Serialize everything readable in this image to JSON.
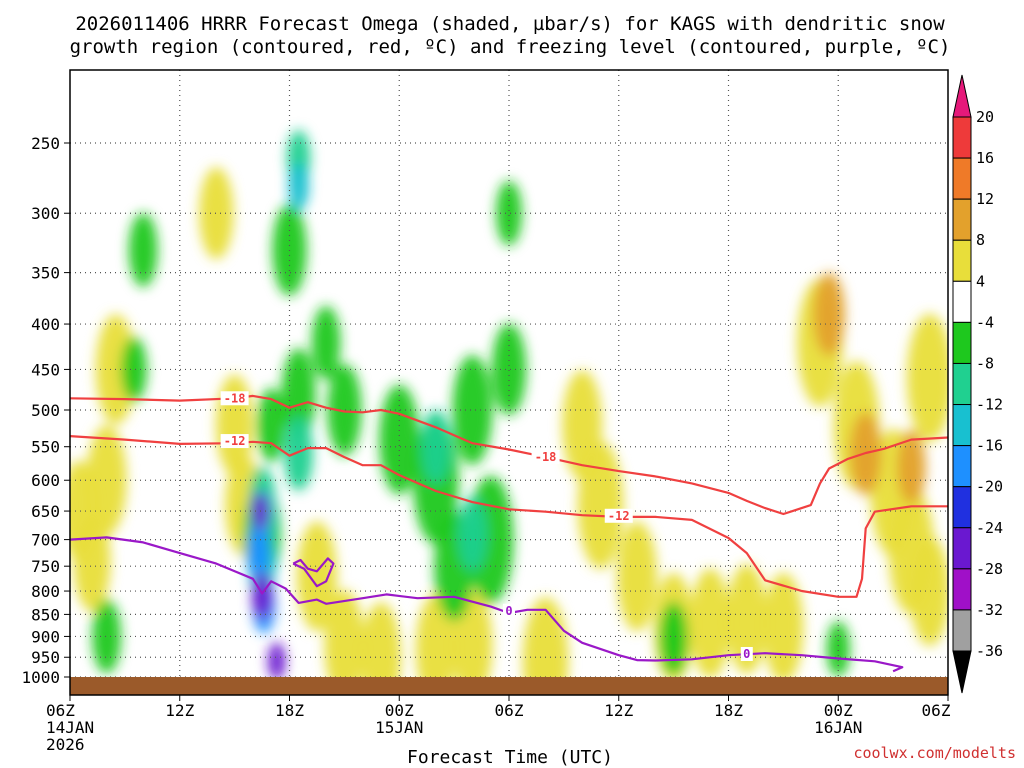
{
  "chart_data": {
    "type": "heatmap",
    "title_line1": "2026011406 HRRR Forecast Omega (shaded, µbar/s) for KAGS with dendritic snow",
    "title_line2": "growth region (contoured, red, ºC) and freezing level (contoured, purple, ºC)",
    "xlabel": "Forecast Time (UTC)",
    "credit": "coolwx.com/modelts",
    "x_hours": [
      0,
      6,
      12,
      18,
      24,
      30,
      36,
      42,
      48
    ],
    "x_ticks": [
      {
        "h": 0,
        "l1": "06Z",
        "l2": "14JAN",
        "l3": "2026"
      },
      {
        "h": 6,
        "l1": "12Z",
        "l2": "",
        "l3": ""
      },
      {
        "h": 12,
        "l1": "18Z",
        "l2": "",
        "l3": ""
      },
      {
        "h": 18,
        "l1": "00Z",
        "l2": "15JAN",
        "l3": ""
      },
      {
        "h": 24,
        "l1": "06Z",
        "l2": "",
        "l3": ""
      },
      {
        "h": 30,
        "l1": "12Z",
        "l2": "",
        "l3": ""
      },
      {
        "h": 36,
        "l1": "18Z",
        "l2": "",
        "l3": ""
      },
      {
        "h": 42,
        "l1": "00Z",
        "l2": "16JAN",
        "l3": ""
      },
      {
        "h": 48,
        "l1": "06Z",
        "l2": "",
        "l3": ""
      }
    ],
    "y_ticks": [
      "250",
      "300",
      "350",
      "400",
      "450",
      "500",
      "550",
      "600",
      "650",
      "700",
      "750",
      "800",
      "850",
      "900",
      "950",
      "1000"
    ],
    "y_levels": [
      250,
      300,
      350,
      400,
      450,
      500,
      550,
      600,
      650,
      700,
      750,
      800,
      850,
      900,
      950,
      1000
    ],
    "colorbar": {
      "ticks": [
        "20",
        "16",
        "12",
        "8",
        "4",
        "-4",
        "-8",
        "-12",
        "-16",
        "-20",
        "-24",
        "-28",
        "-32",
        "-36"
      ],
      "bins": [
        {
          "from": 16,
          "to": 20,
          "color": "#ee3a3a"
        },
        {
          "from": 12,
          "to": 16,
          "color": "#ef7a28"
        },
        {
          "from": 8,
          "to": 12,
          "color": "#e3a12c"
        },
        {
          "from": 4,
          "to": 8,
          "color": "#e8de3a"
        },
        {
          "from": -4,
          "to": 4,
          "color": "#ffffff"
        },
        {
          "from": -8,
          "to": -4,
          "color": "#1ec81e"
        },
        {
          "from": -12,
          "to": -8,
          "color": "#20d090"
        },
        {
          "from": -16,
          "to": -12,
          "color": "#18c0d0"
        },
        {
          "from": -20,
          "to": -16,
          "color": "#1e90ff"
        },
        {
          "from": -24,
          "to": -20,
          "color": "#2030e0"
        },
        {
          "from": -28,
          "to": -24,
          "color": "#6a18d0"
        },
        {
          "from": -32,
          "to": -28,
          "color": "#a010c8"
        },
        {
          "from": -36,
          "to": -32,
          "color": "#a0a0a0"
        }
      ],
      "top_arrow_color": "#e6197a",
      "bottom_arrow_color": "#000000"
    },
    "terrain_color": "#9b5a2a",
    "contours": [
      {
        "name": "-18",
        "label": "-18",
        "color": "#f04040",
        "points": [
          [
            0,
            485
          ],
          [
            3,
            486
          ],
          [
            6,
            488
          ],
          [
            9,
            485
          ],
          [
            10,
            482
          ],
          [
            11,
            486
          ],
          [
            12,
            497
          ],
          [
            13,
            490
          ],
          [
            14,
            497
          ],
          [
            15,
            502
          ],
          [
            16,
            503
          ],
          [
            17,
            500
          ],
          [
            18,
            505
          ],
          [
            20,
            523
          ],
          [
            22,
            545
          ],
          [
            24,
            554
          ],
          [
            26,
            565
          ],
          [
            28,
            577
          ],
          [
            30,
            586
          ],
          [
            32,
            594
          ],
          [
            34,
            605
          ],
          [
            36,
            620
          ],
          [
            37,
            633
          ],
          [
            38,
            645
          ],
          [
            39,
            655
          ],
          [
            39.5,
            650
          ],
          [
            40.5,
            640
          ],
          [
            41,
            605
          ],
          [
            41.5,
            582
          ],
          [
            42.5,
            568
          ],
          [
            43.5,
            559
          ],
          [
            44.5,
            553
          ],
          [
            46,
            540
          ],
          [
            48,
            537
          ]
        ],
        "label_at": [
          [
            9,
            485
          ],
          [
            26,
            565
          ]
        ]
      },
      {
        "name": "-12",
        "label": "-12",
        "color": "#f04040",
        "points": [
          [
            0,
            535
          ],
          [
            3,
            540
          ],
          [
            6,
            546
          ],
          [
            9,
            545
          ],
          [
            10,
            543
          ],
          [
            11,
            545
          ],
          [
            12,
            563
          ],
          [
            13,
            552
          ],
          [
            14,
            552
          ],
          [
            15,
            565
          ],
          [
            16,
            577
          ],
          [
            17,
            577
          ],
          [
            18,
            592
          ],
          [
            20,
            617
          ],
          [
            22,
            635
          ],
          [
            24,
            647
          ],
          [
            26,
            651
          ],
          [
            28,
            657
          ],
          [
            30,
            660
          ],
          [
            32,
            660
          ],
          [
            34,
            665
          ],
          [
            36,
            697
          ],
          [
            37,
            725
          ],
          [
            38,
            778
          ],
          [
            40,
            800
          ],
          [
            42,
            812
          ],
          [
            43,
            812
          ],
          [
            43.3,
            775
          ],
          [
            43.5,
            680
          ],
          [
            44,
            651
          ],
          [
            46,
            642
          ],
          [
            48,
            642
          ]
        ],
        "label_at": [
          [
            9,
            542
          ],
          [
            30,
            658
          ]
        ]
      },
      {
        "name": "0",
        "label": "0",
        "color": "#9a18c8",
        "points": [
          [
            0,
            700
          ],
          [
            2,
            696
          ],
          [
            4,
            705
          ],
          [
            6,
            725
          ],
          [
            8,
            745
          ],
          [
            10,
            775
          ],
          [
            10.5,
            805
          ],
          [
            11,
            780
          ],
          [
            11.8,
            795
          ],
          [
            12.5,
            825
          ],
          [
            13.5,
            818
          ],
          [
            14,
            827
          ],
          [
            16,
            815
          ],
          [
            17.3,
            807
          ],
          [
            19,
            815
          ],
          [
            21,
            812
          ],
          [
            23,
            833
          ],
          [
            24,
            847
          ],
          [
            25,
            840
          ],
          [
            26,
            840
          ],
          [
            27,
            887
          ],
          [
            28,
            915
          ],
          [
            30,
            945
          ],
          [
            31,
            957
          ],
          [
            32,
            958
          ],
          [
            34,
            955
          ],
          [
            36,
            945
          ],
          [
            38,
            940
          ],
          [
            40,
            945
          ],
          [
            42,
            953
          ],
          [
            44,
            960
          ],
          [
            45.5,
            975
          ],
          [
            45,
            985
          ]
        ],
        "label_at": [
          [
            24,
            842
          ],
          [
            37,
            942
          ]
        ]
      },
      {
        "name": "0b",
        "label": "",
        "color": "#9a18c8",
        "points": [
          [
            12.2,
            745
          ],
          [
            12.8,
            755
          ],
          [
            13.5,
            790
          ],
          [
            14,
            780
          ],
          [
            14.4,
            745
          ],
          [
            14.1,
            735
          ],
          [
            13.5,
            760
          ],
          [
            13,
            755
          ],
          [
            12.6,
            738
          ],
          [
            12.2,
            745
          ]
        ],
        "label_at": []
      }
    ],
    "shaded_regions": [
      {
        "value": 4,
        "color": "#e8de3a",
        "cells": [
          [
            0.5,
            650,
            0.9
          ],
          [
            1.2,
            740,
            0.9
          ],
          [
            2,
            600,
            1.0
          ],
          [
            2.5,
            450,
            1.0
          ],
          [
            8,
            300,
            0.8
          ],
          [
            9,
            520,
            0.9
          ],
          [
            9.5,
            640,
            0.9
          ],
          [
            13.5,
            770,
            1.0
          ],
          [
            15,
            920,
            1.0
          ],
          [
            17,
            950,
            1.0
          ],
          [
            20,
            930,
            1.0
          ],
          [
            22,
            920,
            1.0
          ],
          [
            26,
            960,
            1.2
          ],
          [
            28,
            520,
            1.0
          ],
          [
            29,
            640,
            1.2
          ],
          [
            31,
            770,
            1.0
          ],
          [
            33,
            880,
            1.0
          ],
          [
            35,
            870,
            1.0
          ],
          [
            37,
            860,
            1.0
          ],
          [
            39,
            880,
            1.0
          ],
          [
            41,
            420,
            1.2
          ],
          [
            43,
            520,
            1.2
          ],
          [
            45,
            620,
            1.2
          ],
          [
            46,
            720,
            1.2
          ],
          [
            47,
            460,
            1.2
          ],
          [
            47,
            800,
            1.0
          ]
        ]
      },
      {
        "value": 8,
        "color": "#e3a12c",
        "cells": [
          [
            41.5,
            390,
            0.7
          ],
          [
            43.5,
            560,
            0.7
          ],
          [
            46,
            580,
            0.6
          ]
        ]
      },
      {
        "value": -4,
        "color": "#1ec81e",
        "cells": [
          [
            4,
            330,
            0.6
          ],
          [
            3.5,
            450,
            0.5
          ],
          [
            12,
            330,
            0.8
          ],
          [
            12.5,
            480,
            0.8
          ],
          [
            11,
            520,
            0.6
          ],
          [
            10.5,
            690,
            0.9
          ],
          [
            14,
            420,
            0.6
          ],
          [
            15,
            500,
            0.8
          ],
          [
            18,
            540,
            1.0
          ],
          [
            20,
            600,
            1.2
          ],
          [
            21,
            750,
            1.0
          ],
          [
            22,
            500,
            1.0
          ],
          [
            23,
            700,
            1.2
          ],
          [
            24,
            450,
            0.8
          ],
          [
            24,
            300,
            0.5
          ],
          [
            33,
            905,
            0.6
          ],
          [
            42,
            930,
            0.4
          ],
          [
            2,
            900,
            0.6
          ]
        ]
      },
      {
        "value": -8,
        "color": "#20d090",
        "cells": [
          [
            12.5,
            260,
            0.4
          ],
          [
            12.5,
            560,
            0.6
          ],
          [
            20,
            550,
            0.6
          ],
          [
            22,
            690,
            0.6
          ],
          [
            10.5,
            630,
            0.5
          ]
        ]
      },
      {
        "value": -12,
        "color": "#18c0d0",
        "cells": [
          [
            12.5,
            280,
            0.3
          ],
          [
            10.5,
            660,
            0.4
          ],
          [
            10.5,
            760,
            0.5
          ]
        ]
      },
      {
        "value": -16,
        "color": "#1e90ff",
        "cells": [
          [
            10.3,
            720,
            0.4
          ],
          [
            10.6,
            830,
            0.4
          ]
        ]
      },
      {
        "value": -24,
        "color": "#6a18d0",
        "cells": [
          [
            10.4,
            650,
            0.2
          ],
          [
            10.5,
            810,
            0.3
          ],
          [
            11.3,
            960,
            0.2
          ]
        ]
      }
    ]
  }
}
